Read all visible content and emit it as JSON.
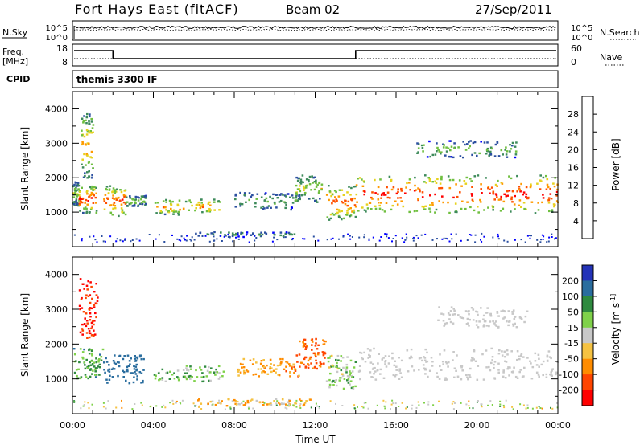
{
  "header": {
    "station": "Fort Hays East (fitACF)",
    "beam": "Beam 02",
    "date": "27/Sep/2011"
  },
  "panels": {
    "nsky_label": "N.Sky",
    "nsearch_label": "N.Search",
    "nsky_ticks": [
      "10^5",
      "10^0"
    ],
    "nsearch_ticks": [
      "10^5",
      "10^0"
    ],
    "freq_label_1": "Freq.",
    "freq_label_2": "[MHz]",
    "freq_ticks": [
      "18",
      "8"
    ],
    "nave_label": "Nave",
    "nave_ticks": [
      "60",
      "0"
    ],
    "cpid_label": "CPID",
    "cpid_value": "themis 3300 IF"
  },
  "colors": {
    "power": [
      "#0000ff",
      "#2b4fa0",
      "#3d8a5a",
      "#6fbf3f",
      "#e6d21e",
      "#ff9a00",
      "#ff5000",
      "#ff0000"
    ],
    "velocity": [
      "#2433b8",
      "#2a6d9e",
      "#2f8a3f",
      "#7fd14a",
      "#c8c8c8",
      "#f5c242",
      "#ff8c00",
      "#ff4500",
      "#ff0000"
    ]
  },
  "chart_data": [
    {
      "type": "heatmap",
      "name": "power",
      "ylabel": "Slant Range [km]",
      "yticks": [
        "1000",
        "2000",
        "3000",
        "4000"
      ],
      "xticks": [
        "00:00",
        "04:00",
        "08:00",
        "12:00",
        "16:00",
        "20:00",
        "00:00"
      ],
      "colorbar": {
        "label": "Power [dB]",
        "ticks": [
          "4",
          "8",
          "12",
          "16",
          "20",
          "24",
          "28"
        ],
        "range": [
          0,
          30
        ]
      },
      "features": [
        {
          "t0": 0.0,
          "t1": 0.3,
          "r0": 1200,
          "r1": 1900,
          "peak": 0.5
        },
        {
          "t0": 0.3,
          "t1": 1.2,
          "r0": 1000,
          "r1": 1800,
          "peak": 0.9
        },
        {
          "t0": 0.4,
          "t1": 1.0,
          "r0": 2000,
          "r1": 3900,
          "peak": 0.7
        },
        {
          "t0": 1.5,
          "t1": 2.6,
          "r0": 900,
          "r1": 1800,
          "peak": 0.85
        },
        {
          "t0": 2.6,
          "t1": 3.6,
          "r0": 1200,
          "r1": 1500,
          "peak": 0.5
        },
        {
          "t0": 4.0,
          "t1": 7.3,
          "r0": 950,
          "r1": 1400,
          "peak": 0.75
        },
        {
          "t0": 8.0,
          "t1": 11.2,
          "r0": 1100,
          "r1": 1600,
          "peak": 0.4
        },
        {
          "t0": 11.0,
          "t1": 12.3,
          "r0": 1300,
          "r1": 2100,
          "peak": 0.55
        },
        {
          "t0": 12.5,
          "t1": 14.0,
          "r0": 800,
          "r1": 1800,
          "peak": 0.85
        },
        {
          "t0": 14.0,
          "t1": 24.0,
          "r0": 1000,
          "r1": 2100,
          "peak": 0.95
        },
        {
          "t0": 17.0,
          "t1": 22.0,
          "r0": 2600,
          "r1": 3100,
          "peak": 0.45
        },
        {
          "t0": 6.0,
          "t1": 11.0,
          "r0": 300,
          "r1": 450,
          "peak": 0.35
        }
      ]
    },
    {
      "type": "heatmap",
      "name": "velocity",
      "ylabel": "Slant Range [km]",
      "yticks": [
        "1000",
        "2000",
        "3000",
        "4000"
      ],
      "xticks": [
        "00:00",
        "04:00",
        "08:00",
        "12:00",
        "16:00",
        "20:00",
        "00:00"
      ],
      "xlabel": "Time UT",
      "colorbar": {
        "label": "Velocity [m s^-1]",
        "ticks": [
          "200",
          "100",
          "50",
          "15",
          "-15",
          "-50",
          "-100",
          "-200"
        ],
        "range": [
          -250,
          250
        ]
      },
      "features": [
        {
          "t0": 0.3,
          "t1": 1.2,
          "r0": 2200,
          "r1": 3900,
          "vel": -200
        },
        {
          "t0": 0.0,
          "t1": 1.5,
          "r0": 1000,
          "r1": 1900,
          "vel": 60
        },
        {
          "t0": 1.5,
          "t1": 3.5,
          "r0": 900,
          "r1": 1700,
          "vel": 150
        },
        {
          "t0": 4.0,
          "t1": 7.5,
          "r0": 950,
          "r1": 1400,
          "vel": 40
        },
        {
          "t0": 8.0,
          "t1": 11.3,
          "r0": 1100,
          "r1": 1600,
          "vel": -60
        },
        {
          "t0": 11.0,
          "t1": 12.5,
          "r0": 1300,
          "r1": 2200,
          "vel": -120
        },
        {
          "t0": 12.5,
          "t1": 14.0,
          "r0": 700,
          "r1": 1700,
          "vel": 20
        },
        {
          "t0": 14.0,
          "t1": 24.0,
          "r0": 1000,
          "r1": 1900,
          "vel": 0
        },
        {
          "t0": 18.0,
          "t1": 22.5,
          "r0": 2500,
          "r1": 3100,
          "vel": 0
        },
        {
          "t0": 6.0,
          "t1": 12.0,
          "r0": 250,
          "r1": 450,
          "vel": -40
        }
      ]
    }
  ]
}
